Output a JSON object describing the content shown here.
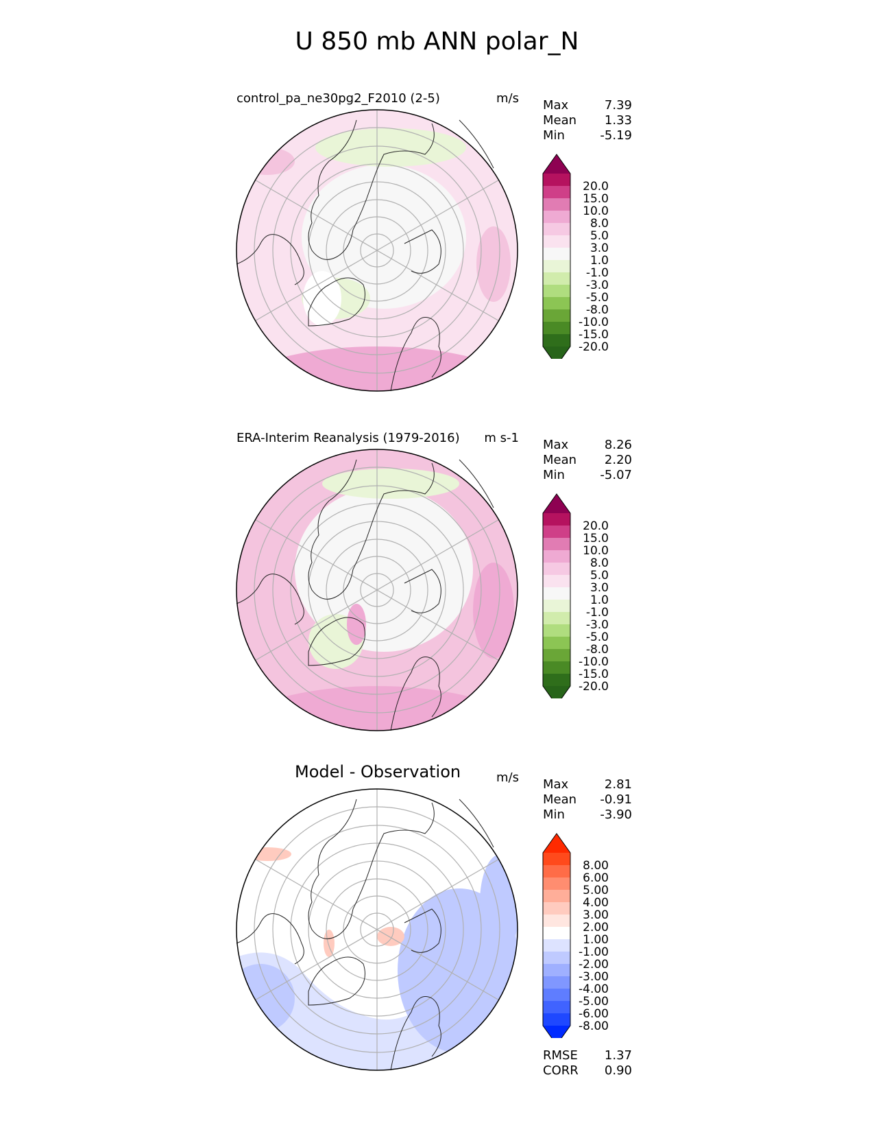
{
  "title": "U 850 mb ANN polar_N",
  "chart_data": [
    {
      "type": "heatmap",
      "projection": "north polar stereographic",
      "title": "control_pa_ne30pg2_F2010 (2-5)",
      "units": "m/s",
      "stats": {
        "max": "7.39",
        "mean": "1.33",
        "min": "-5.19"
      },
      "colorbar": {
        "extend": "both",
        "ticks": [
          "20.0",
          "15.0",
          "10.0",
          "8.0",
          "5.0",
          "3.0",
          "1.0",
          "-1.0",
          "-3.0",
          "-5.0",
          "-8.0",
          "-10.0",
          "-15.0",
          "-20.0"
        ],
        "colors": [
          "#8e0152",
          "#b5125f",
          "#cf3f88",
          "#e17cb3",
          "#efaad3",
          "#f6c9e3",
          "#fae2ef",
          "#f7f7f7",
          "#e9f5d7",
          "#d1ecac",
          "#b0dd7f",
          "#8cc554",
          "#6aa637",
          "#4a8a25",
          "#2f6e1b",
          "#276419"
        ]
      }
    },
    {
      "type": "heatmap",
      "projection": "north polar stereographic",
      "title": "ERA-Interim Reanalysis (1979-2016)",
      "units": "m s-1",
      "stats": {
        "max": "8.26",
        "mean": "2.20",
        "min": "-5.07"
      },
      "colorbar": {
        "extend": "both",
        "ticks": [
          "20.0",
          "15.0",
          "10.0",
          "8.0",
          "5.0",
          "3.0",
          "1.0",
          "-1.0",
          "-3.0",
          "-5.0",
          "-8.0",
          "-10.0",
          "-15.0",
          "-20.0"
        ],
        "colors": [
          "#8e0152",
          "#b5125f",
          "#cf3f88",
          "#e17cb3",
          "#efaad3",
          "#f6c9e3",
          "#fae2ef",
          "#f7f7f7",
          "#e9f5d7",
          "#d1ecac",
          "#b0dd7f",
          "#8cc554",
          "#6aa637",
          "#4a8a25",
          "#2f6e1b",
          "#276419"
        ]
      }
    },
    {
      "type": "heatmap",
      "projection": "north polar stereographic",
      "title": "Model - Observation",
      "units": "m/s",
      "stats": {
        "max": "2.81",
        "mean": "-0.91",
        "min": "-3.90"
      },
      "colorbar": {
        "extend": "both",
        "ticks": [
          "8.00",
          "6.00",
          "5.00",
          "4.00",
          "3.00",
          "2.00",
          "1.00",
          "-1.00",
          "-2.00",
          "-3.00",
          "-4.00",
          "-5.00",
          "-6.00",
          "-8.00"
        ],
        "colors": [
          "#ff2a00",
          "#ff4a1c",
          "#ff6c47",
          "#ff8d70",
          "#ffae99",
          "#ffcbbf",
          "#ffe6e0",
          "#ffffff",
          "#dde3ff",
          "#bfcaff",
          "#9fb0ff",
          "#8097ff",
          "#5f7dff",
          "#4063ff",
          "#1f48ff",
          "#002aff"
        ]
      }
    }
  ],
  "diff_stats": {
    "rmse_label": "RMSE",
    "rmse": "1.37",
    "corr_label": "CORR",
    "corr": "0.90"
  },
  "labels": {
    "max": "Max",
    "mean": "Mean",
    "min": "Min"
  }
}
